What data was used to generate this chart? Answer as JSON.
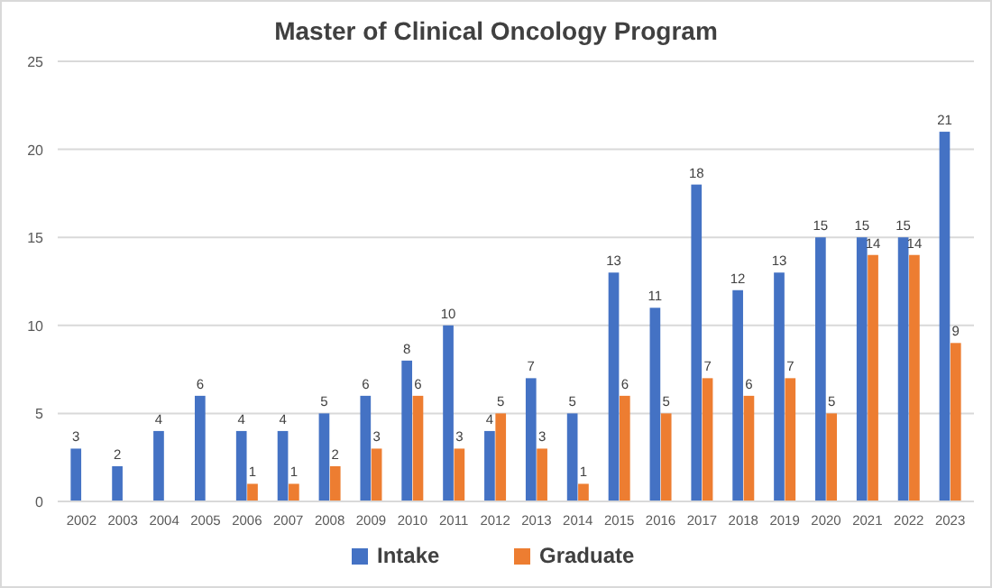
{
  "chart_data": {
    "type": "bar",
    "title": "Master of Clinical Oncology Program",
    "categories": [
      "2002",
      "2003",
      "2004",
      "2005",
      "2006",
      "2007",
      "2008",
      "2009",
      "2010",
      "2011",
      "2012",
      "2013",
      "2014",
      "2015",
      "2016",
      "2017",
      "2018",
      "2019",
      "2020",
      "2021",
      "2022",
      "2023"
    ],
    "series": [
      {
        "name": "Intake",
        "color": "#4472c4",
        "values": [
          3,
          2,
          4,
          6,
          4,
          4,
          5,
          6,
          8,
          10,
          4,
          7,
          5,
          13,
          11,
          18,
          12,
          13,
          15,
          15,
          15,
          21
        ]
      },
      {
        "name": "Graduate",
        "color": "#ed7d31",
        "values": [
          null,
          null,
          null,
          null,
          1,
          1,
          2,
          3,
          6,
          3,
          5,
          3,
          1,
          6,
          5,
          7,
          6,
          7,
          5,
          14,
          14,
          9
        ]
      }
    ],
    "ylim": [
      0,
      25
    ],
    "yticks": [
      0,
      5,
      10,
      15,
      20,
      25
    ],
    "grid": "y",
    "legend": "bottom",
    "data_labels": true
  }
}
